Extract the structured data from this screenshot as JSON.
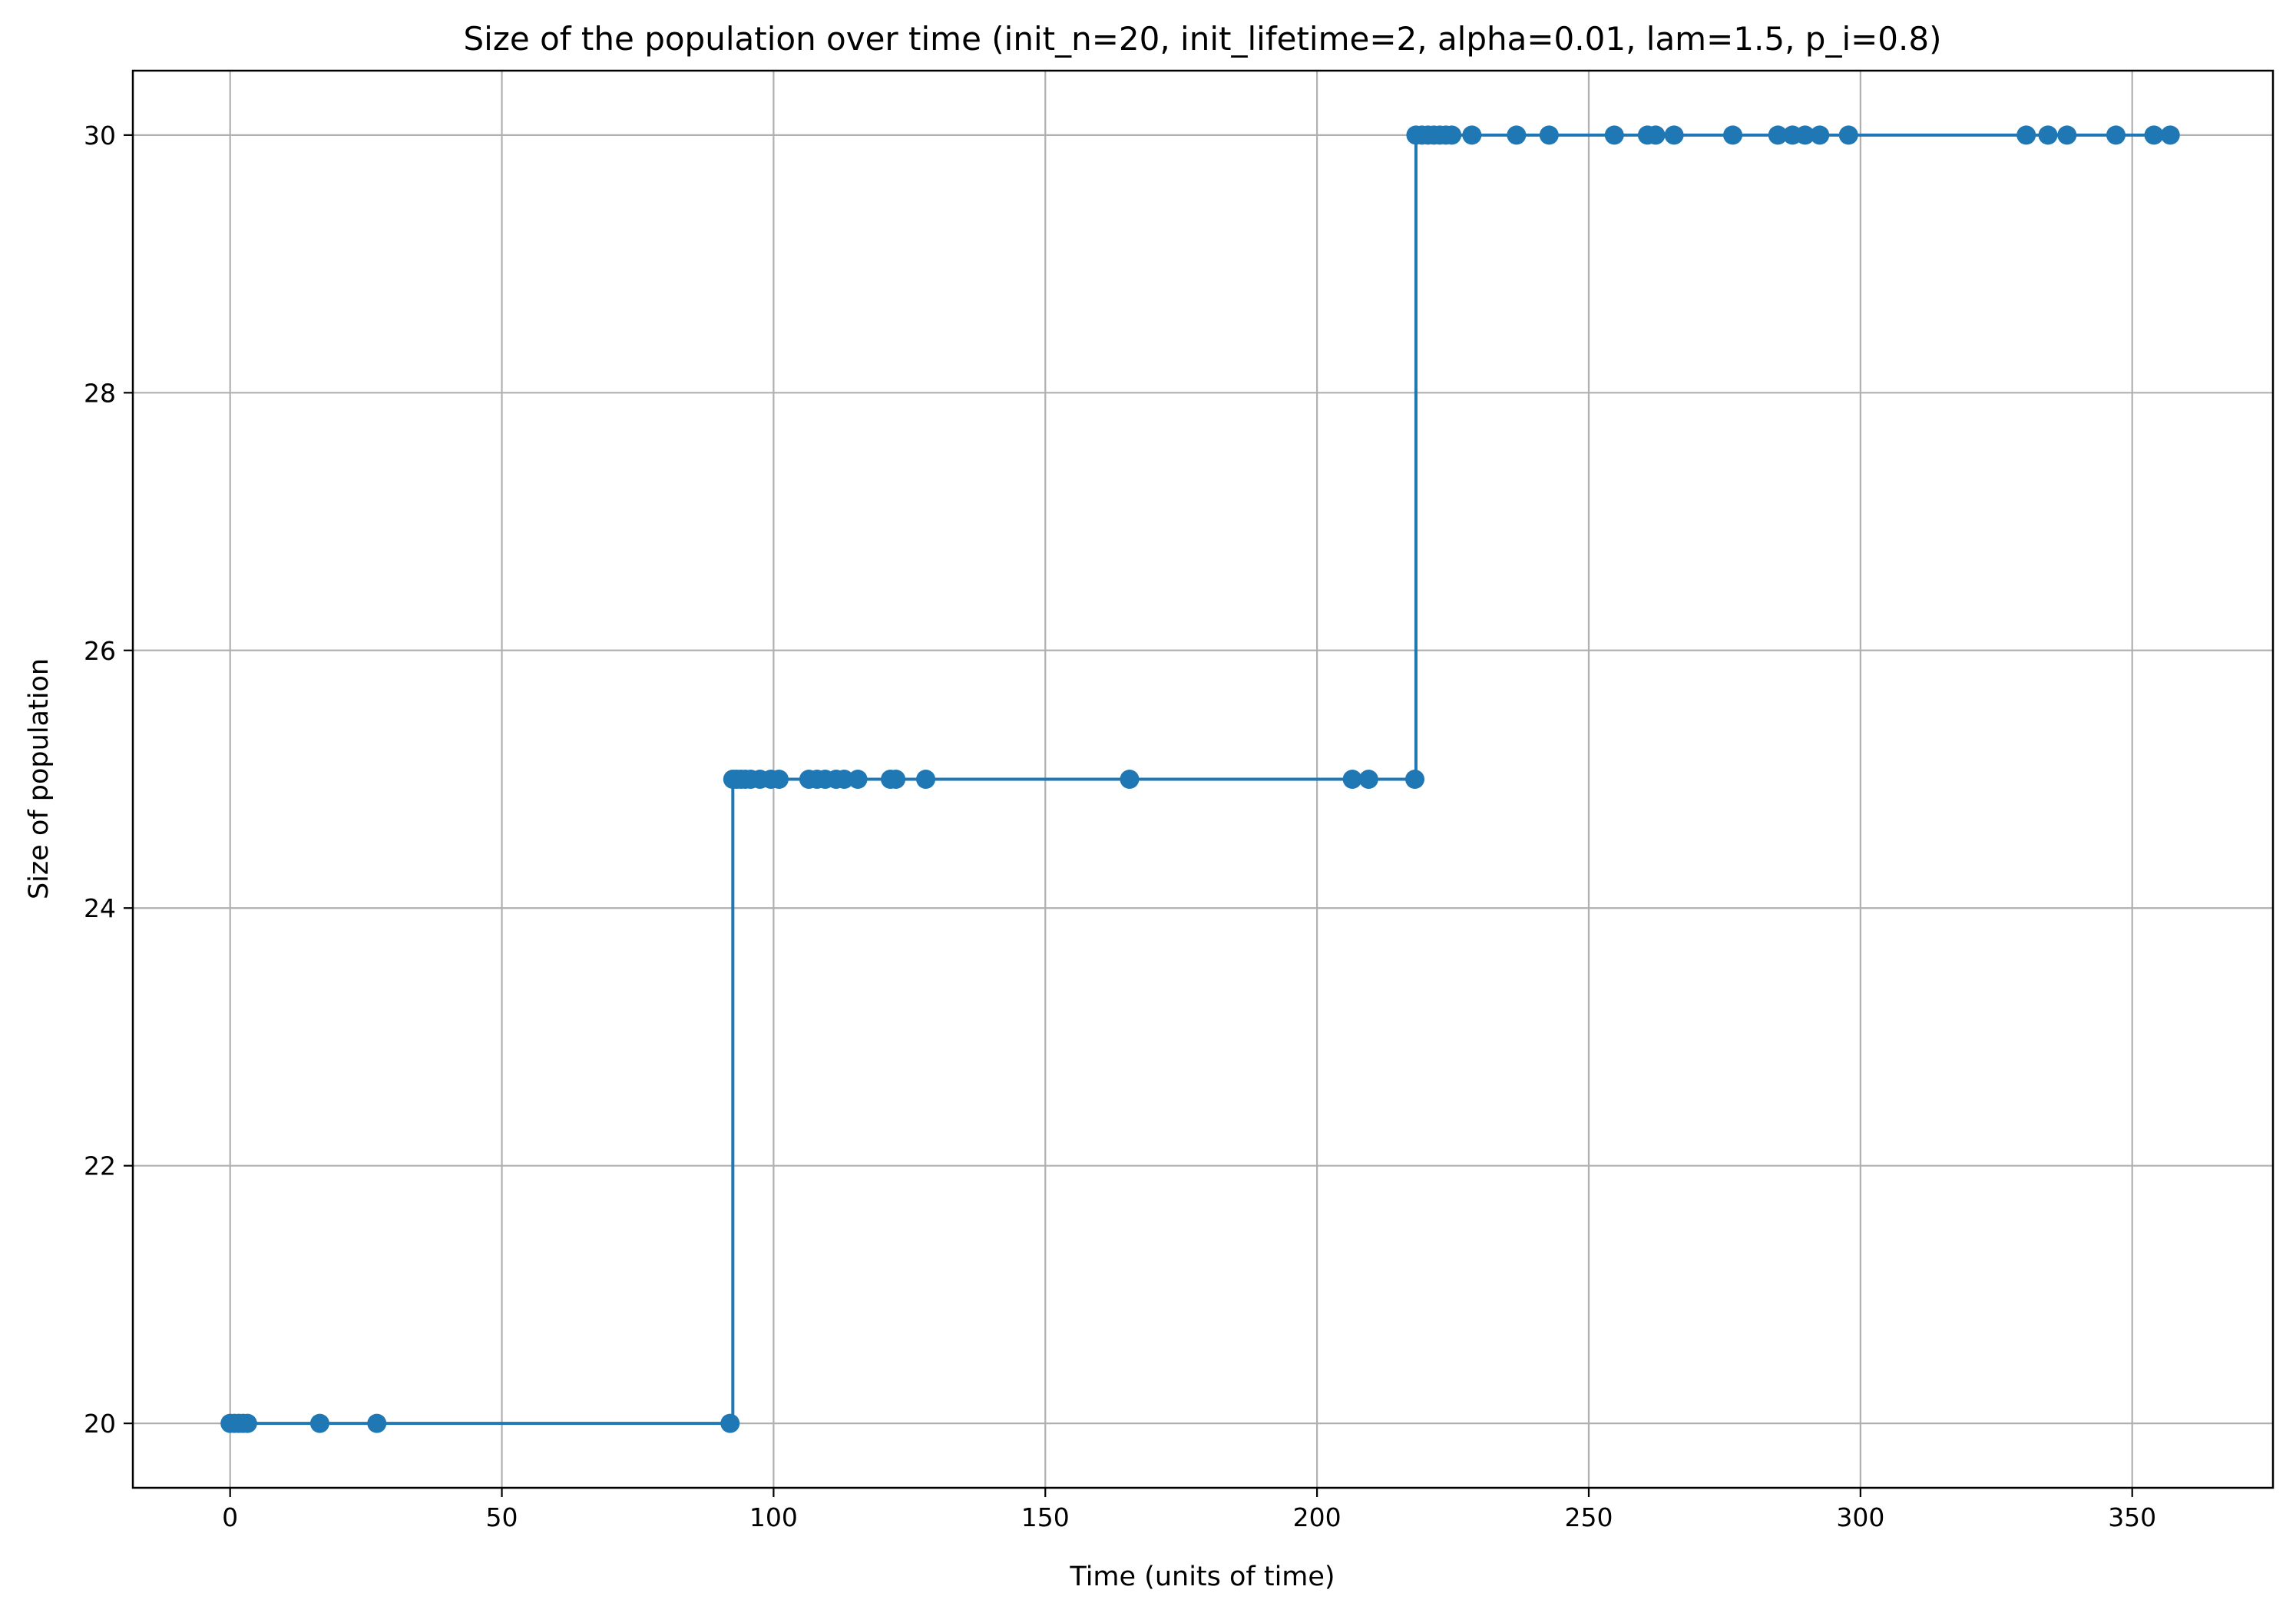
{
  "chart_data": {
    "type": "line",
    "title": "Size of the population over time (init_n=20, init_lifetime=2, alpha=0.01, lam=1.5, p_i=0.8)",
    "xlabel": "Time (units of time)",
    "ylabel": "Size of population",
    "xlim": [
      -17.9,
      375.9
    ],
    "ylim": [
      19.5,
      30.5
    ],
    "xticks": [
      0,
      50,
      100,
      150,
      200,
      250,
      300,
      350
    ],
    "yticks": [
      20,
      22,
      24,
      26,
      28,
      30
    ],
    "xtick_labels": [
      "0",
      "50",
      "100",
      "150",
      "200",
      "250",
      "300",
      "350"
    ],
    "ytick_labels": [
      "20",
      "22",
      "24",
      "26",
      "28",
      "30"
    ],
    "grid": true,
    "legend": "none",
    "line_style": "step-post",
    "marker": "circle",
    "colors": {
      "series": "#1f77b4",
      "grid": "#b0b0b0",
      "axes": "#000000"
    },
    "series": [
      {
        "x": [
          0,
          0.8,
          1.6,
          2.4,
          3.2,
          16.5,
          27.0,
          92.0,
          92.5,
          93.2,
          94.0,
          94.8,
          95.8,
          97.5,
          99.5,
          101.0,
          106.5,
          108.0,
          109.5,
          111.5,
          113.0,
          115.5,
          121.5,
          122.5,
          128.0,
          165.5,
          206.5,
          209.5,
          218.0,
          218.2,
          219.3,
          220.4,
          221.5,
          222.6,
          223.7,
          224.8,
          228.5,
          236.7,
          242.7,
          254.7,
          260.8,
          262.3,
          265.7,
          276.5,
          284.8,
          287.5,
          289.8,
          292.5,
          297.8,
          330.5,
          334.5,
          338.0,
          347.0,
          354.0,
          357.0
        ],
        "y": [
          20,
          20,
          20,
          20,
          20,
          20,
          20,
          20,
          25,
          25,
          25,
          25,
          25,
          25,
          25,
          25,
          25,
          25,
          25,
          25,
          25,
          25,
          25,
          25,
          25,
          25,
          25,
          25,
          25,
          30,
          30,
          30,
          30,
          30,
          30,
          30,
          30,
          30,
          30,
          30,
          30,
          30,
          30,
          30,
          30,
          30,
          30,
          30,
          30,
          30,
          30,
          30,
          30,
          30,
          30
        ]
      }
    ]
  }
}
